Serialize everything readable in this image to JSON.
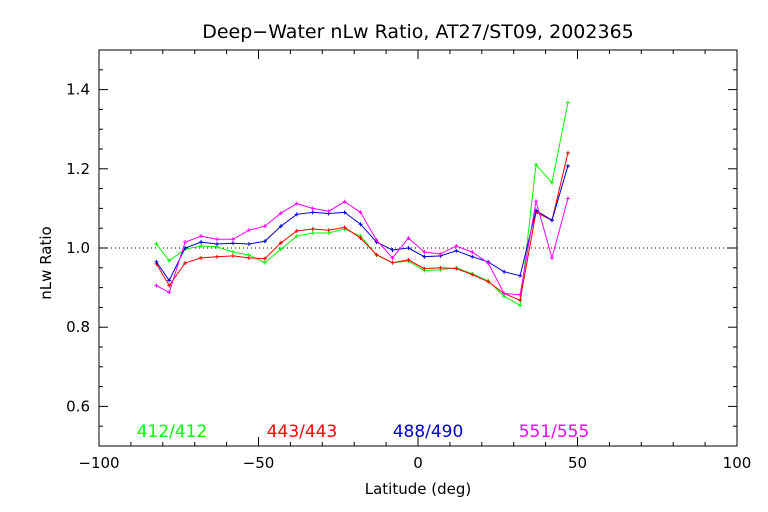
{
  "chart_data": {
    "type": "line",
    "title": "Deep−Water nLw Ratio, AT27/ST09, 2002365",
    "xlabel": "Latitude (deg)",
    "ylabel": "nLw Ratio",
    "xlim": [
      -100,
      100
    ],
    "ylim": [
      0.5,
      1.5
    ],
    "xticks": [
      -100,
      -50,
      0,
      50,
      100
    ],
    "xtick_labels": [
      "−100",
      "−50",
      "0",
      "50",
      "100"
    ],
    "yticks": [
      0.6,
      0.8,
      1.0,
      1.2,
      1.4
    ],
    "ytick_labels": [
      "0.6",
      "0.8",
      "1.0",
      "1.2",
      "1.4"
    ],
    "reference_line": 1.0,
    "grid": false,
    "legend_position": "bottom",
    "x": [
      -82,
      -78,
      -73,
      -68,
      -63,
      -58,
      -53,
      -48,
      -43,
      -38,
      -33,
      -28,
      -23,
      -18,
      -13,
      -8,
      -3,
      2,
      7,
      12,
      17,
      22,
      27,
      32,
      37,
      42,
      47
    ],
    "series": [
      {
        "name": "412/412",
        "color": "#00ff00",
        "values": [
          1.01,
          0.968,
          0.997,
          1.005,
          1.003,
          0.99,
          0.982,
          0.963,
          0.997,
          1.03,
          1.038,
          1.038,
          1.048,
          1.03,
          0.982,
          0.963,
          0.967,
          0.943,
          0.945,
          0.95,
          0.935,
          0.917,
          0.878,
          0.855,
          1.21,
          1.165,
          1.367
        ]
      },
      {
        "name": "443/443",
        "color": "#ff0000",
        "values": [
          0.96,
          0.905,
          0.962,
          0.975,
          0.978,
          0.98,
          0.975,
          0.973,
          1.013,
          1.043,
          1.048,
          1.045,
          1.052,
          1.025,
          0.983,
          0.963,
          0.97,
          0.948,
          0.95,
          0.948,
          0.933,
          0.915,
          0.885,
          0.868,
          1.09,
          1.07,
          1.24
        ]
      },
      {
        "name": "488/490",
        "color": "#0000cc",
        "values": [
          0.965,
          0.918,
          1.0,
          1.015,
          1.01,
          1.012,
          1.01,
          1.017,
          1.055,
          1.085,
          1.09,
          1.087,
          1.09,
          1.06,
          1.015,
          0.995,
          1.0,
          0.978,
          0.98,
          0.993,
          0.978,
          0.965,
          0.94,
          0.93,
          1.095,
          1.07,
          1.207
        ]
      },
      {
        "name": "551/555",
        "color": "#ff00ff",
        "values": [
          0.905,
          0.888,
          1.015,
          1.03,
          1.022,
          1.022,
          1.045,
          1.055,
          1.088,
          1.112,
          1.1,
          1.093,
          1.117,
          1.09,
          1.02,
          0.975,
          1.025,
          0.99,
          0.985,
          1.005,
          0.99,
          0.962,
          0.885,
          0.882,
          1.118,
          0.975,
          1.125
        ]
      }
    ]
  }
}
